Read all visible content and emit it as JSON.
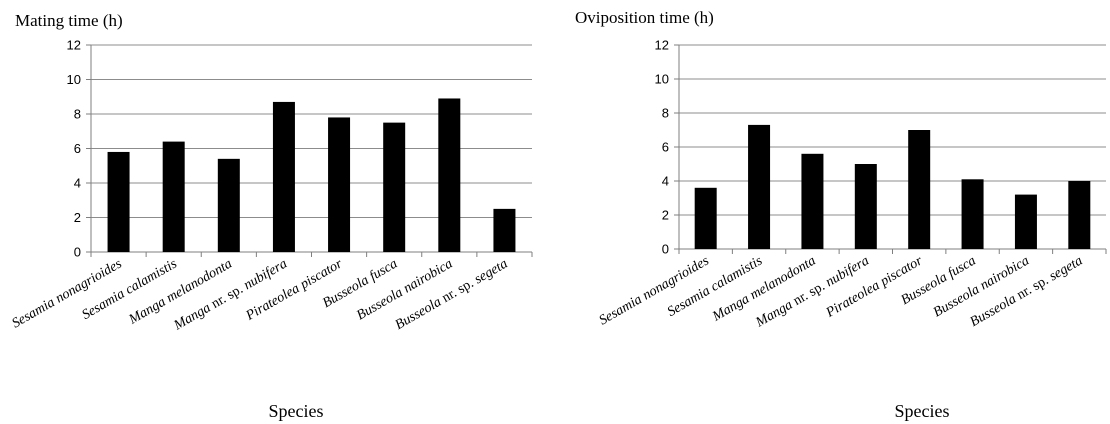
{
  "chart_data": [
    {
      "type": "bar",
      "title": "Mating time (h)",
      "xlabel": "Species",
      "ylabel": "",
      "ylim": [
        0,
        12
      ],
      "yticks": [
        0,
        2,
        4,
        6,
        8,
        10,
        12
      ],
      "grid": true,
      "categories": [
        "Sesamia nonagrioides",
        "Sesamia calamistis",
        "Manga melanodonta",
        "Manga nr. sp. nubifera",
        "Pirateolea piscator",
        "Busseola fusca",
        "Busseola nairobica",
        "Busseola nr. sp. segeta"
      ],
      "values": [
        5.8,
        6.4,
        5.4,
        8.7,
        7.8,
        7.5,
        8.9,
        2.5
      ],
      "bar_color": "#000000"
    },
    {
      "type": "bar",
      "title": "Oviposition time (h)",
      "xlabel": "Species",
      "ylabel": "",
      "ylim": [
        0,
        12
      ],
      "yticks": [
        0,
        2,
        4,
        6,
        8,
        10,
        12
      ],
      "grid": true,
      "categories": [
        "Sesamia nonagrioides",
        "Sesamia calamistis",
        "Manga melanodonta",
        "Manga nr. sp. nubifera",
        "Pirateolea piscator",
        "Busseola fusca",
        "Busseola nairobica",
        "Busseola nr. sp. segeta"
      ],
      "values": [
        3.6,
        7.3,
        5.6,
        5.0,
        7.0,
        4.1,
        3.2,
        4.0
      ],
      "bar_color": "#000000"
    }
  ]
}
